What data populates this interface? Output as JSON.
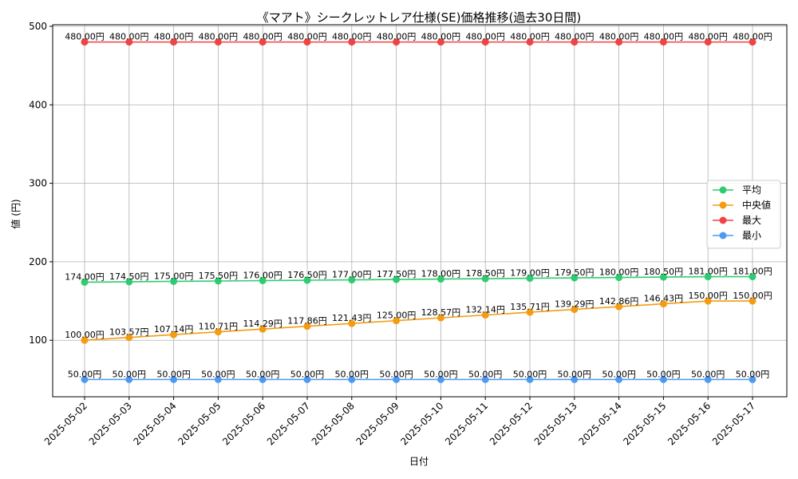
{
  "chart_data": {
    "type": "line",
    "title": "《マアト》シークレットレア仕様(SE)価格推移(過去30日間)",
    "xlabel": "日付",
    "ylabel": "値 (円)",
    "categories": [
      "2025-05-02",
      "2025-05-03",
      "2025-05-04",
      "2025-05-05",
      "2025-05-06",
      "2025-05-07",
      "2025-05-08",
      "2025-05-09",
      "2025-05-10",
      "2025-05-11",
      "2025-05-12",
      "2025-05-13",
      "2025-05-14",
      "2025-05-15",
      "2025-05-16",
      "2025-05-17"
    ],
    "ylim": [
      28,
      502
    ],
    "yticks": [
      100,
      200,
      300,
      400,
      500
    ],
    "grid": true,
    "legend_position": "center-right",
    "series": [
      {
        "name": "平均",
        "color": "#2ecc71",
        "values": [
          174.0,
          174.5,
          175.0,
          175.5,
          176.0,
          176.5,
          177.0,
          177.5,
          178.0,
          178.5,
          179.0,
          179.5,
          180.0,
          180.5,
          181.0,
          181.0
        ],
        "labels": [
          "174.00円",
          "174.50円",
          "175.00円",
          "175.50円",
          "176.00円",
          "176.50円",
          "177.00円",
          "177.50円",
          "178.00円",
          "178.50円",
          "179.00円",
          "179.50円",
          "180.00円",
          "180.50円",
          "181.00円",
          "181.00円"
        ]
      },
      {
        "name": "中央値",
        "color": "#f39c12",
        "values": [
          100.0,
          103.57,
          107.14,
          110.71,
          114.29,
          117.86,
          121.43,
          125.0,
          128.57,
          132.14,
          135.71,
          139.29,
          142.86,
          146.43,
          150.0,
          150.0
        ],
        "labels": [
          "100.00円",
          "103.57円",
          "107.14円",
          "110.71円",
          "114.29円",
          "117.86円",
          "121.43円",
          "125.00円",
          "128.57円",
          "132.14円",
          "135.71円",
          "139.29円",
          "142.86円",
          "146.43円",
          "150.00円",
          "150.00円"
        ]
      },
      {
        "name": "最大",
        "color": "#ef4444",
        "values": [
          480,
          480,
          480,
          480,
          480,
          480,
          480,
          480,
          480,
          480,
          480,
          480,
          480,
          480,
          480,
          480
        ],
        "labels": [
          "480.00円",
          "480.00円",
          "480.00円",
          "480.00円",
          "480.00円",
          "480.00円",
          "480.00円",
          "480.00円",
          "480.00円",
          "480.00円",
          "480.00円",
          "480.00円",
          "480.00円",
          "480.00円",
          "480.00円",
          "480.00円"
        ]
      },
      {
        "name": "最小",
        "color": "#4e9af1",
        "values": [
          50,
          50,
          50,
          50,
          50,
          50,
          50,
          50,
          50,
          50,
          50,
          50,
          50,
          50,
          50,
          50
        ],
        "labels": [
          "50.00円",
          "50.00円",
          "50.00円",
          "50.00円",
          "50.00円",
          "50.00円",
          "50.00円",
          "50.00円",
          "50.00円",
          "50.00円",
          "50.00円",
          "50.00円",
          "50.00円",
          "50.00円",
          "50.00円",
          "50.00円"
        ]
      }
    ]
  }
}
